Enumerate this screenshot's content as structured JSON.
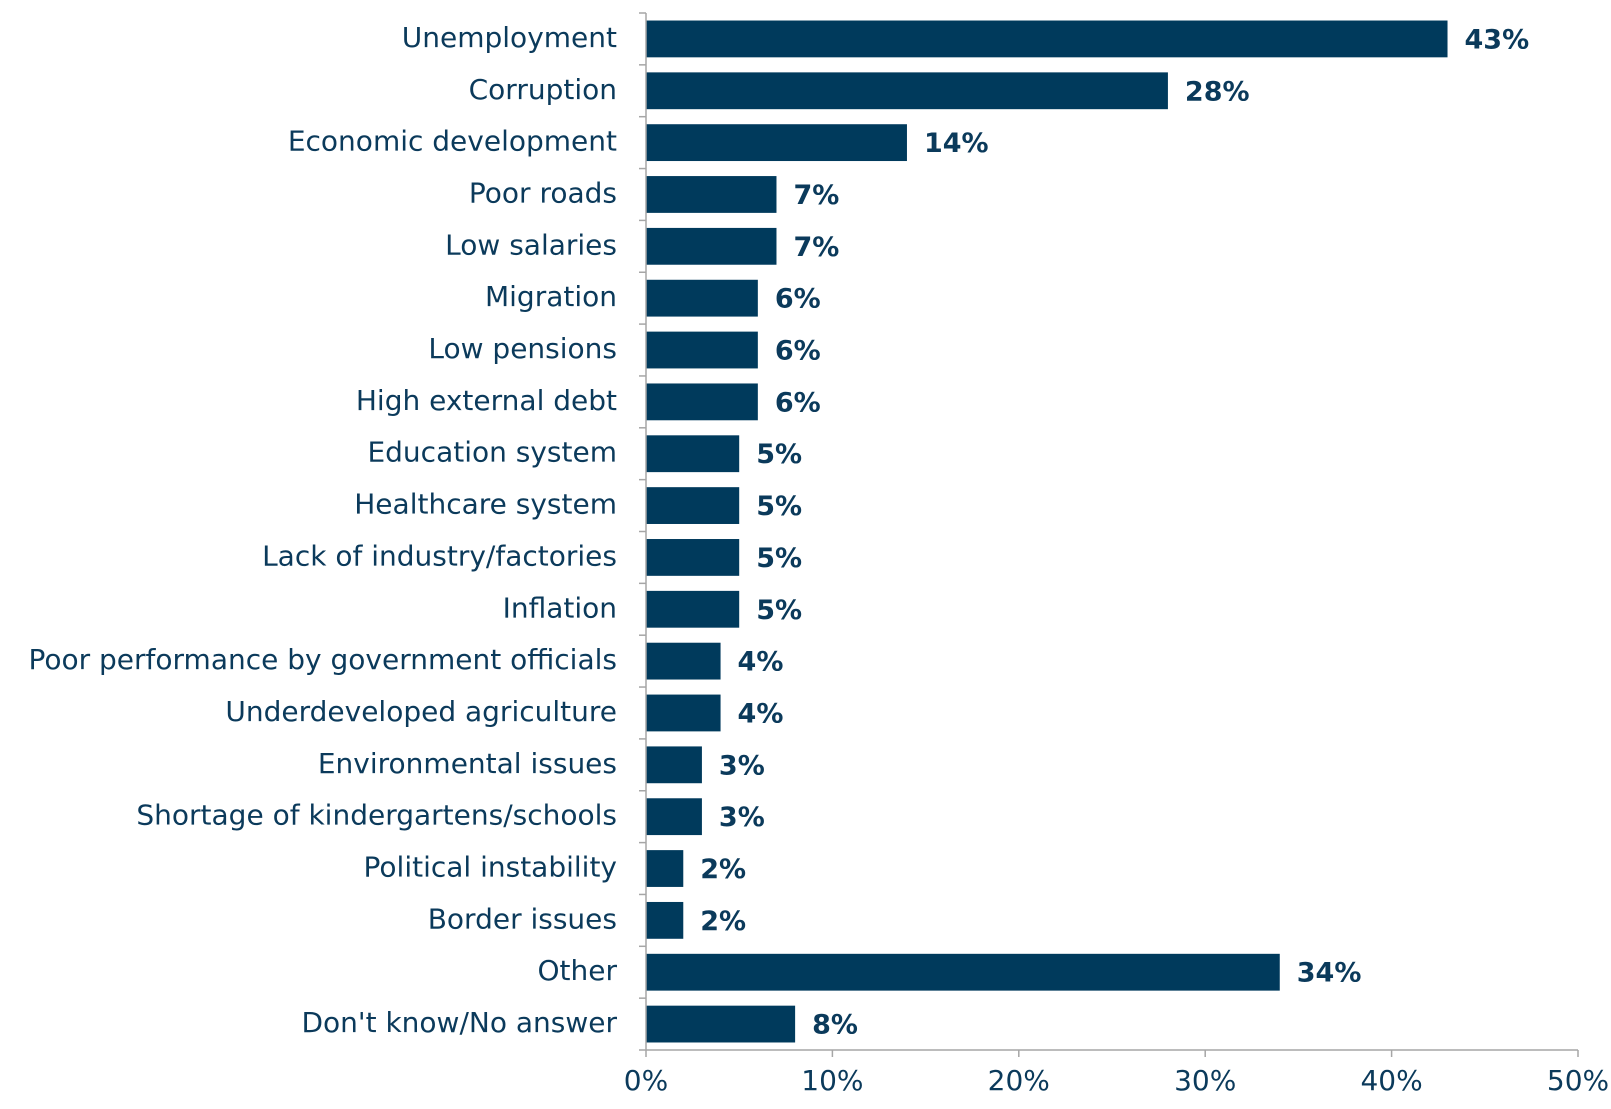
{
  "chart_data": {
    "type": "bar",
    "orientation": "horizontal",
    "title": "",
    "xlabel": "",
    "ylabel": "",
    "categories": [
      "Unemployment",
      "Corruption",
      "Economic development",
      "Poor roads",
      "Low salaries",
      "Migration",
      "Low pensions",
      "High external debt",
      "Education system",
      "Healthcare system",
      "Lack of industry/factories",
      "Inflation",
      "Poor performance by government officials",
      "Underdeveloped agriculture",
      "Environmental issues",
      "Shortage of kindergartens/schools",
      "Political instability",
      "Border issues",
      "Other",
      "Don't know/No answer"
    ],
    "values": [
      43,
      28,
      14,
      7,
      7,
      6,
      6,
      6,
      5,
      5,
      5,
      5,
      4,
      4,
      3,
      3,
      2,
      2,
      34,
      8
    ],
    "value_labels": [
      "43%",
      "28%",
      "14%",
      "7%",
      "7%",
      "6%",
      "6%",
      "6%",
      "5%",
      "5%",
      "5%",
      "5%",
      "4%",
      "4%",
      "3%",
      "3%",
      "2%",
      "2%",
      "34%",
      "8%"
    ],
    "xlim": [
      0,
      50
    ],
    "x_ticks": [
      0,
      10,
      20,
      30,
      40,
      50
    ],
    "x_tick_labels": [
      "0%",
      "10%",
      "20%",
      "30%",
      "40%",
      "50%"
    ],
    "grid": false,
    "legend": "none",
    "bar_color": "#003a5c"
  }
}
